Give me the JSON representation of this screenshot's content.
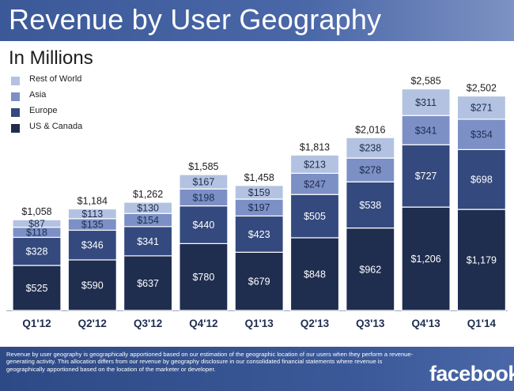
{
  "title": "Revenue by User Geography",
  "subtitle": "In Millions",
  "brand": "facebook.",
  "footnote": "Revenue by user geography is geographically apportioned based on our estimation of the geographic location of our users when they perform a revenue-generating activity. This allocation differs from our revenue by geography disclosure in our consolidated financial statements where revenue is geographically apportioned based on the location of the marketer or developer.",
  "colors": {
    "title_bar": "#3b5998",
    "us_canada": "#1f2d4f",
    "europe": "#34497d",
    "asia": "#7c90c6",
    "rest_of_world": "#b3c2e1",
    "text_dark": "#1c1c1c"
  },
  "chart_data": {
    "type": "bar",
    "stacked": true,
    "categories": [
      "Q1'12",
      "Q2'12",
      "Q3'12",
      "Q4'12",
      "Q1'13",
      "Q2'13",
      "Q3'13",
      "Q4'13",
      "Q1'14"
    ],
    "series": [
      {
        "name": "US & Canada",
        "color": "#1f2d4f",
        "values": [
          525,
          590,
          637,
          780,
          679,
          848,
          962,
          1206,
          1179
        ],
        "labels": [
          "$525",
          "$590",
          "$637",
          "$780",
          "$679",
          "$848",
          "$962",
          "$1,206",
          "$1,179"
        ]
      },
      {
        "name": "Europe",
        "color": "#34497d",
        "values": [
          328,
          346,
          341,
          440,
          423,
          505,
          538,
          727,
          698
        ],
        "labels": [
          "$328",
          "$346",
          "$341",
          "$440",
          "$423",
          "$505",
          "$538",
          "$727",
          "$698"
        ]
      },
      {
        "name": "Asia",
        "color": "#7c90c6",
        "values": [
          118,
          135,
          154,
          198,
          197,
          247,
          278,
          341,
          354
        ],
        "labels": [
          "$118",
          "$135",
          "$154",
          "$198",
          "$197",
          "$247",
          "$278",
          "$341",
          "$354"
        ]
      },
      {
        "name": "Rest of World",
        "color": "#b3c2e1",
        "values": [
          87,
          113,
          130,
          167,
          159,
          213,
          238,
          311,
          271
        ],
        "labels": [
          "$87",
          "$113",
          "$130",
          "$167",
          "$159",
          "$213",
          "$238",
          "$311",
          "$271"
        ]
      }
    ],
    "totals": [
      1058,
      1184,
      1262,
      1585,
      1458,
      1813,
      2016,
      2585,
      2502
    ],
    "total_labels": [
      "$1,058",
      "$1,184",
      "$1,262",
      "$1,585",
      "$1,458",
      "$1,813",
      "$2,016",
      "$2,585",
      "$2,502"
    ],
    "legend_order": [
      "Rest of World",
      "Asia",
      "Europe",
      "US & Canada"
    ],
    "legend_placement": "top-left",
    "grid": false,
    "ylim": [
      0,
      2800
    ]
  }
}
